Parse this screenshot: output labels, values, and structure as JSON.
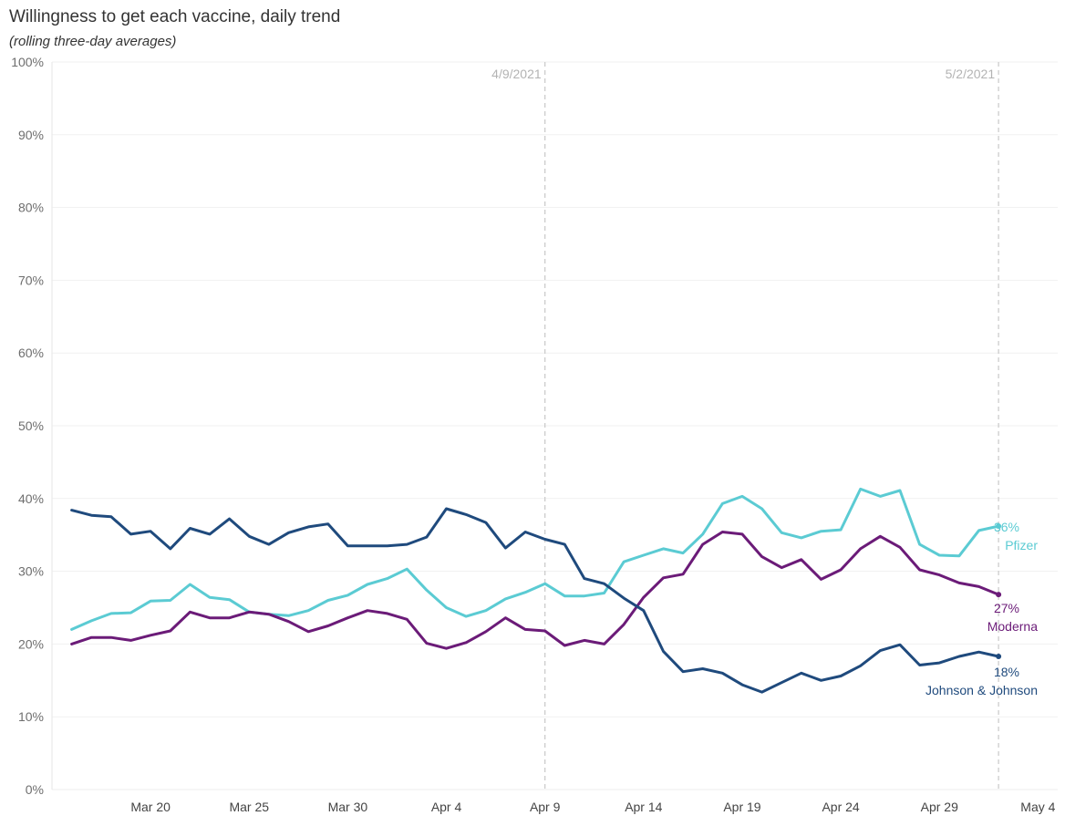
{
  "header": {
    "title": "Willingness to get each vaccine, daily  trend",
    "subtitle": "(rolling three-day averages)"
  },
  "chart_data": {
    "type": "line",
    "title": "Willingness to get each vaccine, daily  trend",
    "subtitle": "(rolling three-day averages)",
    "xlabel": "",
    "ylabel": "",
    "x_start": "2021-03-16",
    "x_range": [
      "2021-03-15",
      "2021-05-05"
    ],
    "ylim": [
      0,
      100
    ],
    "yticks": [
      0,
      10,
      20,
      30,
      40,
      50,
      60,
      70,
      80,
      90,
      100
    ],
    "ytick_labels": [
      "0%",
      "10%",
      "20%",
      "30%",
      "40%",
      "50%",
      "60%",
      "70%",
      "80%",
      "90%",
      "100%"
    ],
    "xticks": [
      {
        "date": "2021-03-20",
        "label": "Mar 20"
      },
      {
        "date": "2021-03-25",
        "label": "Mar 25"
      },
      {
        "date": "2021-03-30",
        "label": "Mar 30"
      },
      {
        "date": "2021-04-04",
        "label": "Apr 4"
      },
      {
        "date": "2021-04-09",
        "label": "Apr 9"
      },
      {
        "date": "2021-04-14",
        "label": "Apr 14"
      },
      {
        "date": "2021-04-19",
        "label": "Apr 19"
      },
      {
        "date": "2021-04-24",
        "label": "Apr 24"
      },
      {
        "date": "2021-04-29",
        "label": "Apr 29"
      },
      {
        "date": "2021-05-04",
        "label": "May 4"
      }
    ],
    "reference_lines": [
      {
        "date": "2021-04-09",
        "label": "4/9/2021"
      },
      {
        "date": "2021-05-02",
        "label": "5/2/2021"
      }
    ],
    "grid": true,
    "legend": "none",
    "series": [
      {
        "name": "Pfizer",
        "color": "#5bcbd3",
        "end_value_label": "36%",
        "values": [
          22.0,
          23.2,
          24.2,
          24.3,
          25.9,
          26.0,
          28.2,
          26.4,
          26.1,
          24.4,
          24.1,
          23.9,
          24.6,
          26.0,
          26.7,
          28.2,
          29.0,
          30.3,
          27.4,
          25.0,
          23.8,
          24.6,
          26.2,
          27.1,
          28.3,
          26.6,
          26.6,
          27.0,
          31.3,
          32.2,
          33.1,
          32.5,
          35.1,
          39.3,
          40.3,
          38.6,
          35.3,
          34.6,
          35.5,
          35.7,
          41.3,
          40.3,
          41.1,
          33.7,
          32.2,
          32.1,
          35.6,
          36.2
        ]
      },
      {
        "name": "Moderna",
        "color": "#6b1b78",
        "end_value_label": "27%",
        "values": [
          20.0,
          20.9,
          20.9,
          20.5,
          21.2,
          21.8,
          24.4,
          23.6,
          23.6,
          24.4,
          24.1,
          23.1,
          21.7,
          22.5,
          23.6,
          24.6,
          24.2,
          23.4,
          20.1,
          19.4,
          20.2,
          21.7,
          23.6,
          22.0,
          21.8,
          19.8,
          20.5,
          20.0,
          22.7,
          26.4,
          29.1,
          29.6,
          33.7,
          35.4,
          35.1,
          32.0,
          30.5,
          31.6,
          28.9,
          30.2,
          33.1,
          34.8,
          33.3,
          30.2,
          29.5,
          28.4,
          27.9,
          26.8
        ]
      },
      {
        "name": "Johnson & Johnson",
        "color": "#1f4a7d",
        "end_value_label": "18%",
        "values": [
          38.4,
          37.7,
          37.5,
          35.1,
          35.5,
          33.1,
          35.9,
          35.1,
          37.2,
          34.8,
          33.7,
          35.3,
          36.1,
          36.5,
          33.5,
          33.5,
          33.5,
          33.7,
          34.7,
          38.6,
          37.8,
          36.7,
          33.2,
          35.4,
          34.4,
          33.7,
          29.0,
          28.3,
          26.3,
          24.6,
          19.0,
          16.2,
          16.6,
          16.0,
          14.4,
          13.4,
          14.7,
          16.0,
          15.0,
          15.6,
          17.0,
          19.1,
          19.9,
          17.1,
          17.4,
          18.3,
          18.9,
          18.3
        ]
      }
    ]
  }
}
